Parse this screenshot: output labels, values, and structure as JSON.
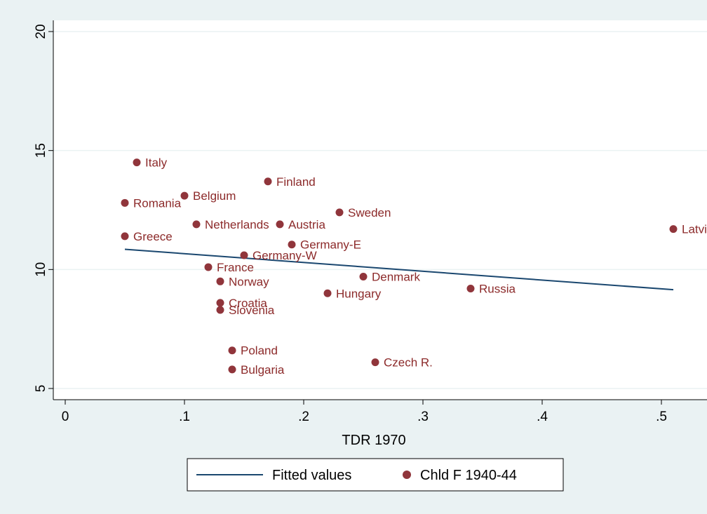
{
  "chart_data": {
    "type": "scatter",
    "title": "",
    "xlabel": "TDR 1970",
    "ylabel": "",
    "xlim": [
      -0.01,
      0.52
    ],
    "ylim": [
      4.5,
      20.3
    ],
    "xticks": [
      {
        "value": 0,
        "label": "0"
      },
      {
        "value": 0.1,
        "label": ".1"
      },
      {
        "value": 0.2,
        "label": ".2"
      },
      {
        "value": 0.3,
        "label": ".3"
      },
      {
        "value": 0.4,
        "label": ".4"
      },
      {
        "value": 0.5,
        "label": ".5"
      }
    ],
    "yticks": [
      {
        "value": 5,
        "label": "5"
      },
      {
        "value": 10,
        "label": "10"
      },
      {
        "value": 15,
        "label": "15"
      },
      {
        "value": 20,
        "label": "20"
      }
    ],
    "grid": true,
    "legend_position": "bottom",
    "series": [
      {
        "name": "Fitted values",
        "kind": "line",
        "color": "#1a476f",
        "points": [
          [
            0.05,
            10.85
          ],
          [
            0.51,
            9.15
          ]
        ]
      },
      {
        "name": "Chld F 1940-44",
        "kind": "scatter",
        "color": "#90353b",
        "points": [
          {
            "label": "Italy",
            "x": 0.06,
            "y": 14.5
          },
          {
            "label": "Finland",
            "x": 0.17,
            "y": 13.7
          },
          {
            "label": "Belgium",
            "x": 0.1,
            "y": 13.1
          },
          {
            "label": "Romania",
            "x": 0.05,
            "y": 12.8
          },
          {
            "label": "Sweden",
            "x": 0.23,
            "y": 12.4
          },
          {
            "label": "Netherlands",
            "x": 0.11,
            "y": 11.9
          },
          {
            "label": "Austria",
            "x": 0.18,
            "y": 11.9
          },
          {
            "label": "Latvia",
            "x": 0.51,
            "y": 11.7
          },
          {
            "label": "Greece",
            "x": 0.05,
            "y": 11.4
          },
          {
            "label": "Germany-E",
            "x": 0.19,
            "y": 11.05
          },
          {
            "label": "Germany-W",
            "x": 0.15,
            "y": 10.6
          },
          {
            "label": "France",
            "x": 0.12,
            "y": 10.1
          },
          {
            "label": "Denmark",
            "x": 0.25,
            "y": 9.7
          },
          {
            "label": "Norway",
            "x": 0.13,
            "y": 9.5
          },
          {
            "label": "Russia",
            "x": 0.34,
            "y": 9.2
          },
          {
            "label": "Hungary",
            "x": 0.22,
            "y": 9.0
          },
          {
            "label": "Croatia",
            "x": 0.13,
            "y": 8.6
          },
          {
            "label": "Slovenia",
            "x": 0.13,
            "y": 8.3
          },
          {
            "label": "Poland",
            "x": 0.14,
            "y": 6.6
          },
          {
            "label": "Czech R.",
            "x": 0.26,
            "y": 6.1
          },
          {
            "label": "Bulgaria",
            "x": 0.14,
            "y": 5.8
          }
        ]
      }
    ]
  }
}
